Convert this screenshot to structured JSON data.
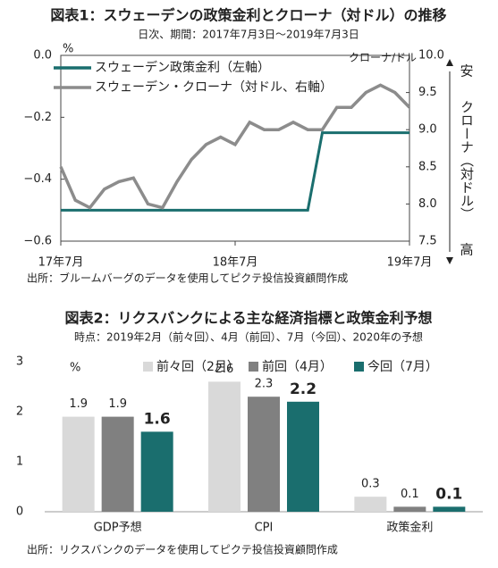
{
  "chart_data": [
    {
      "type": "line",
      "title": "図表1：スウェーデンの政策金利とクローナ（対ドル）の推移",
      "subtitle": "日次、期間：2017年7月3日～2019年7月3日",
      "y_unit": "%",
      "y2_unit": "クローナ/ドル",
      "y2_annotation": {
        "top": "安",
        "middle": "クローナ（対ドル）",
        "bottom": "高"
      },
      "source": "出所：ブルームバーグのデータを使用してピクテ投信投資顧問作成",
      "x": [
        "2017-07",
        "2017-08",
        "2017-09",
        "2017-10",
        "2017-11",
        "2017-12",
        "2018-01",
        "2018-02",
        "2018-03",
        "2018-04",
        "2018-05",
        "2018-06",
        "2018-07",
        "2018-08",
        "2018-09",
        "2018-10",
        "2018-11",
        "2018-12",
        "2019-01",
        "2019-02",
        "2019-03",
        "2019-04",
        "2019-05",
        "2019-06",
        "2019-07"
      ],
      "xticks": [
        {
          "value": "2017-07",
          "label": "17年7月"
        },
        {
          "value": "2018-07",
          "label": "18年7月"
        },
        {
          "value": "2019-07",
          "label": "19年7月"
        }
      ],
      "ylim": [
        -0.6,
        0
      ],
      "yticks": [
        {
          "value": 0,
          "label": "0.0"
        },
        {
          "value": -0.2,
          "label": "−0.2"
        },
        {
          "value": -0.4,
          "label": "−0.4"
        },
        {
          "value": -0.6,
          "label": "−0.6"
        }
      ],
      "y2lim": [
        7.5,
        10
      ],
      "y2ticks": [
        {
          "value": 10,
          "label": "10.0"
        },
        9.5,
        {
          "value": 9,
          "label": "9.0"
        },
        8.5,
        {
          "value": 8,
          "label": "8.0"
        },
        7.5
      ],
      "series": [
        {
          "name": "スウェーデン政策金利（左軸）",
          "color": "#1a6e6e",
          "values": [
            -0.5,
            -0.5,
            -0.5,
            -0.5,
            -0.5,
            -0.5,
            -0.5,
            -0.5,
            -0.5,
            -0.5,
            -0.5,
            -0.5,
            -0.5,
            -0.5,
            -0.5,
            -0.5,
            -0.5,
            -0.5,
            -0.25,
            -0.25,
            -0.25,
            -0.25,
            -0.25,
            -0.25,
            -0.25
          ]
        },
        {
          "name": "スウェーデン・クローナ（対ドル、右軸）",
          "color": "#8c8c8c",
          "axis": "y2",
          "values": [
            8.5,
            8.05,
            7.95,
            8.2,
            8.3,
            8.35,
            8.0,
            7.95,
            8.3,
            8.6,
            8.8,
            8.9,
            8.8,
            9.1,
            9.0,
            9.0,
            9.1,
            9.0,
            9.0,
            9.3,
            9.3,
            9.5,
            9.6,
            9.5,
            9.3
          ]
        }
      ]
    },
    {
      "type": "bar",
      "title": "図表2：リクスバンクによる主な経済指標と政策金利予想",
      "subtitle": "時点：2019年2月（前々回）、4月（前回）、7月（今回）、2020年の予想",
      "y_unit": "%",
      "source": "出所：リクスバンクのデータを使用してピクテ投信投資顧問作成",
      "categories": [
        "GDP予想",
        "CPI",
        "政策金利"
      ],
      "ylim": [
        0,
        3
      ],
      "yticks": [
        0,
        1,
        2,
        3
      ],
      "series": [
        {
          "name": "前々回（2月）",
          "color": "#d9d9d9",
          "values": [
            1.9,
            2.6,
            0.3
          ]
        },
        {
          "name": "前回（4月）",
          "color": "#808080",
          "values": [
            1.9,
            2.3,
            0.1
          ]
        },
        {
          "name": "今回（7月）",
          "color": "#1a6e6e",
          "values": [
            1.6,
            2.2,
            0.1
          ]
        }
      ]
    }
  ]
}
